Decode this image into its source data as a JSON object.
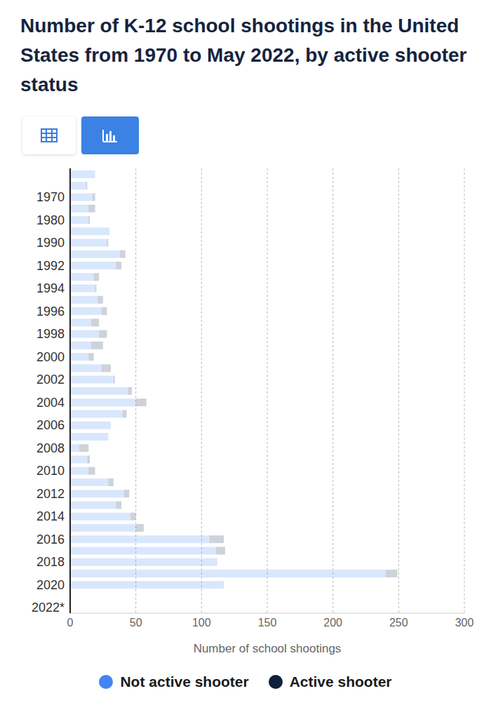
{
  "chart_data": {
    "type": "bar",
    "title": "Number of K-12 school shootings in the United States from 1970 to May 2022, by active shooter status",
    "xlabel": "Number of school shootings",
    "orientation": "horizontal",
    "stacked": true,
    "grid": true,
    "legend": "bottom",
    "categories": [
      null,
      null,
      "1970",
      null,
      "1980",
      null,
      "1990",
      null,
      "1992",
      null,
      "1994",
      null,
      "1996",
      null,
      "1998",
      null,
      "2000",
      null,
      "2002",
      null,
      "2004",
      null,
      "2006",
      null,
      "2008",
      null,
      "2010",
      null,
      "2012",
      null,
      "2014",
      null,
      "2016",
      null,
      "2018",
      null,
      "2020",
      null,
      "2022*"
    ],
    "series": [
      {
        "name": "Not active shooter",
        "color": "#4285f4",
        "values": [
          19,
          12,
          17,
          14,
          14,
          30,
          28,
          38,
          35,
          18,
          19,
          21,
          24,
          16,
          22,
          16,
          14,
          24,
          33,
          44,
          50,
          40,
          31,
          29,
          7,
          13,
          14,
          29,
          41,
          35,
          46,
          50,
          106,
          111,
          112,
          240,
          117,
          null,
          null
        ]
      },
      {
        "name": "Active shooter",
        "color": "#0f1f3d",
        "values": [
          0,
          1,
          2,
          5,
          1,
          0,
          1,
          4,
          4,
          4,
          1,
          4,
          4,
          6,
          6,
          9,
          4,
          7,
          1,
          3,
          8,
          3,
          0,
          0,
          7,
          2,
          5,
          4,
          4,
          4,
          4,
          6,
          11,
          7,
          0,
          9,
          0,
          null,
          null
        ]
      }
    ],
    "xlim": [
      0,
      300
    ],
    "xticks": [
      0,
      50,
      100,
      150,
      200,
      250,
      300
    ]
  }
}
